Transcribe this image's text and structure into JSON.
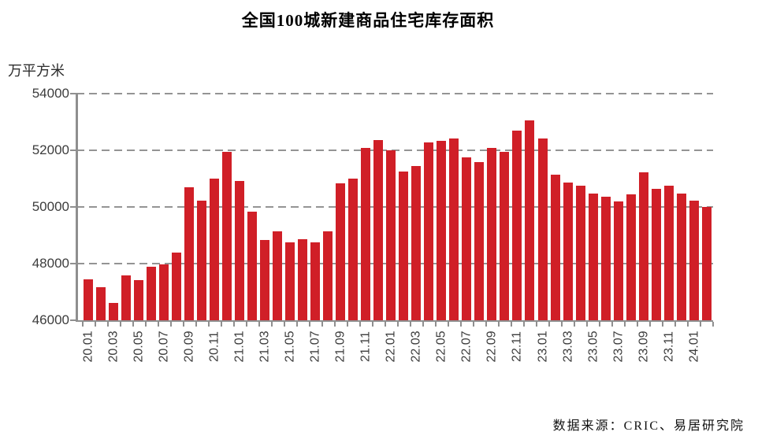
{
  "title": "全国100城新建商品住宅库存面积",
  "y_axis": {
    "unit": "万平方米",
    "tick_labels": [
      "54000",
      "52000",
      "50000",
      "48000",
      "46000"
    ],
    "min": 46000,
    "max": 54000,
    "step": 2000
  },
  "source_note": "数据来源：CRIC、易居研究院",
  "colors": {
    "bar": "#d01f27",
    "axis": "#8f8f8f",
    "grid": "#949494",
    "title_text": "#000000",
    "tick_text": "#3c3c3c"
  },
  "chart_data": {
    "type": "bar",
    "title": "全国100城新建商品住宅库存面积",
    "xlabel": "",
    "ylabel": "万平方米",
    "ylim": [
      46000,
      54000
    ],
    "grid": "horizontal-dashed",
    "legend": "none",
    "x_tick_step": 2,
    "categories": [
      "20.01",
      "20.02",
      "20.03",
      "20.04",
      "20.05",
      "20.06",
      "20.07",
      "20.08",
      "20.09",
      "20.10",
      "20.11",
      "20.12",
      "21.01",
      "21.02",
      "21.03",
      "21.04",
      "21.05",
      "21.06",
      "21.07",
      "21.08",
      "21.09",
      "21.10",
      "21.11",
      "21.12",
      "22.01",
      "22.02",
      "22.03",
      "22.04",
      "22.05",
      "22.06",
      "22.07",
      "22.08",
      "22.09",
      "22.10",
      "22.11",
      "22.12",
      "23.01",
      "23.02",
      "23.03",
      "23.04",
      "23.05",
      "23.06",
      "23.07",
      "23.08",
      "23.09",
      "23.10",
      "23.11",
      "23.12",
      "24.01",
      "24.02"
    ],
    "values": [
      47440,
      47170,
      46610,
      47570,
      47420,
      47880,
      47970,
      48390,
      50700,
      50210,
      51000,
      51940,
      50930,
      49820,
      48840,
      49130,
      48740,
      48870,
      48740,
      49130,
      50820,
      51010,
      52080,
      52370,
      52010,
      51260,
      51450,
      52270,
      52330,
      52430,
      51740,
      51580,
      52090,
      51940,
      52700,
      53050,
      52410,
      51140,
      50860,
      50750,
      50470,
      50350,
      50200,
      50440,
      51210,
      50630,
      50740,
      50470,
      50220,
      49990
    ]
  }
}
